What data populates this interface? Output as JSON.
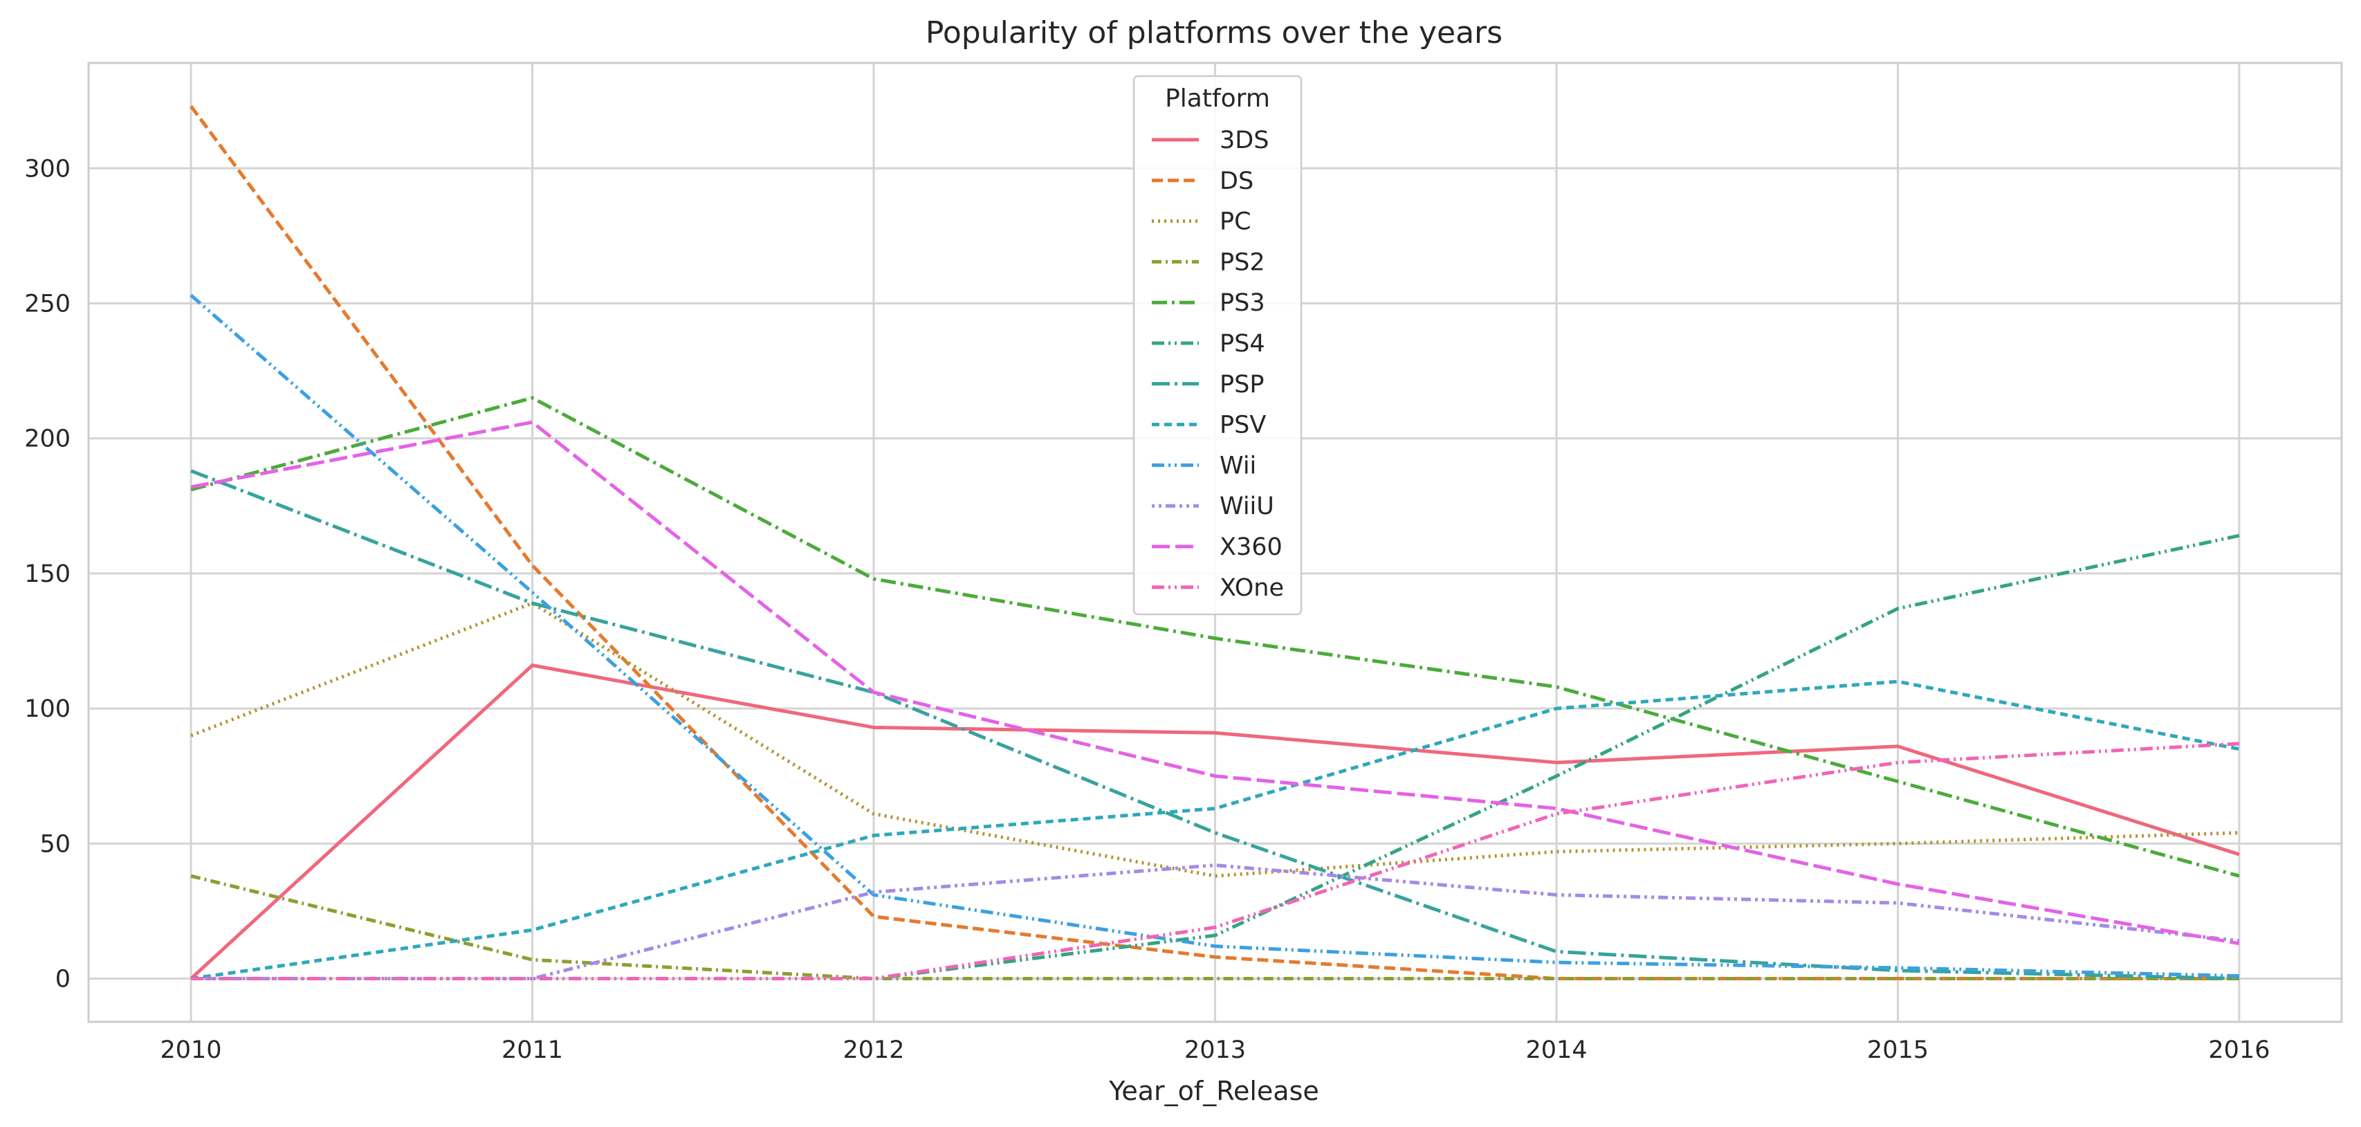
{
  "chart_data": {
    "type": "line",
    "title": "Popularity of platforms over the years",
    "xlabel": "Year_of_Release",
    "ylabel": "",
    "x": [
      2010,
      2011,
      2012,
      2013,
      2014,
      2015,
      2016
    ],
    "xticks": [
      "2010",
      "2011",
      "2012",
      "2013",
      "2014",
      "2015",
      "2016"
    ],
    "yticks": [
      "0",
      "50",
      "100",
      "150",
      "200",
      "250",
      "300"
    ],
    "xlim": [
      2009.7,
      2016.3
    ],
    "ylim": [
      -16,
      339
    ],
    "grid": true,
    "legend": {
      "title": "Platform",
      "placement": "top-center"
    },
    "series": [
      {
        "name": "3DS",
        "color": "#f0677e",
        "dash": "solid",
        "values": [
          0,
          116,
          93,
          91,
          80,
          86,
          46
        ]
      },
      {
        "name": "DS",
        "color": "#e47a2e",
        "dash": "dashed",
        "values": [
          323,
          153,
          23,
          8,
          0,
          0,
          0
        ]
      },
      {
        "name": "PC",
        "color": "#b49433",
        "dash": "dotted",
        "values": [
          90,
          139,
          61,
          38,
          47,
          50,
          54
        ]
      },
      {
        "name": "PS2",
        "color": "#8f9d2f",
        "dash": "dashdot",
        "values": [
          38,
          7,
          0,
          0,
          0,
          0,
          0
        ]
      },
      {
        "name": "PS3",
        "color": "#4bab3a",
        "dash": "dashdot-long",
        "values": [
          181,
          215,
          148,
          126,
          108,
          73,
          38
        ]
      },
      {
        "name": "PS4",
        "color": "#34a483",
        "dash": "dashdotdot",
        "values": [
          0,
          0,
          0,
          16,
          75,
          137,
          164
        ]
      },
      {
        "name": "PSP",
        "color": "#37a39c",
        "dash": "longdashdot",
        "values": [
          188,
          139,
          106,
          54,
          10,
          3,
          0
        ]
      },
      {
        "name": "PSV",
        "color": "#2ea8bb",
        "dash": "dashed-short",
        "values": [
          0,
          18,
          53,
          63,
          100,
          110,
          85
        ]
      },
      {
        "name": "Wii",
        "color": "#3ba0e2",
        "dash": "dashdotdot",
        "values": [
          253,
          143,
          31,
          12,
          6,
          4,
          1
        ]
      },
      {
        "name": "WiiU",
        "color": "#a48ae8",
        "dash": "dotted-dash",
        "values": [
          0,
          0,
          32,
          42,
          31,
          28,
          14
        ]
      },
      {
        "name": "X360",
        "color": "#e462e7",
        "dash": "longdash",
        "values": [
          182,
          206,
          106,
          75,
          63,
          35,
          13
        ]
      },
      {
        "name": "XOne",
        "color": "#f065b5",
        "dash": "dashdotdot",
        "values": [
          0,
          0,
          0,
          19,
          61,
          80,
          87
        ]
      }
    ]
  }
}
